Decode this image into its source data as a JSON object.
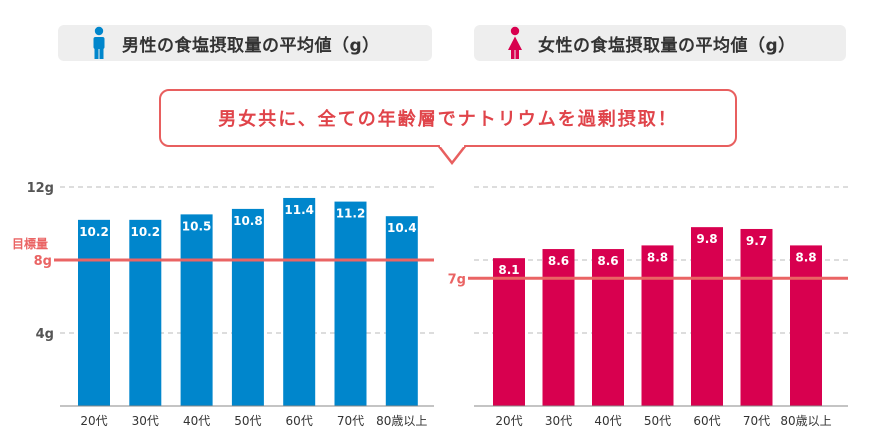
{
  "headers": {
    "male": "男性の食塩摂取量の平均値（g）",
    "female": "女性の食塩摂取量の平均値（g）",
    "male_icon": "male-person-icon",
    "female_icon": "female-person-icon"
  },
  "callout": "男女共に、全ての年齢層でナトリウムを過剰摂取！",
  "colors": {
    "male": "#0086cc",
    "female": "#d8004f",
    "target": "#ea6464",
    "grid": "#bbbbbb"
  },
  "chart_data": [
    {
      "type": "bar",
      "categories": [
        "20代",
        "30代",
        "40代",
        "50代",
        "60代",
        "70代",
        "80歳以上"
      ],
      "values": [
        10.2,
        10.2,
        10.5,
        10.8,
        11.4,
        11.2,
        10.4
      ],
      "value_labels": [
        "10.2",
        "10.2",
        "10.5",
        "10.8",
        "11.4",
        "11.2",
        "10.4"
      ],
      "ylim": [
        0,
        12
      ],
      "yticks": [
        4,
        8,
        12
      ],
      "ytick_labels": [
        "4g",
        "8g",
        "12g"
      ],
      "target": 8,
      "target_label": "目標量",
      "target_value_label": "8g"
    },
    {
      "type": "bar",
      "categories": [
        "20代",
        "30代",
        "40代",
        "50代",
        "60代",
        "70代",
        "80歳以上"
      ],
      "values": [
        8.1,
        8.6,
        8.6,
        8.8,
        9.8,
        9.7,
        8.8
      ],
      "value_labels": [
        "8.1",
        "8.6",
        "8.6",
        "8.8",
        "9.8",
        "9.7",
        "8.8"
      ],
      "ylim": [
        0,
        12
      ],
      "yticks": [
        4,
        8,
        12
      ],
      "target": 7,
      "target_value_label": "7g"
    }
  ]
}
